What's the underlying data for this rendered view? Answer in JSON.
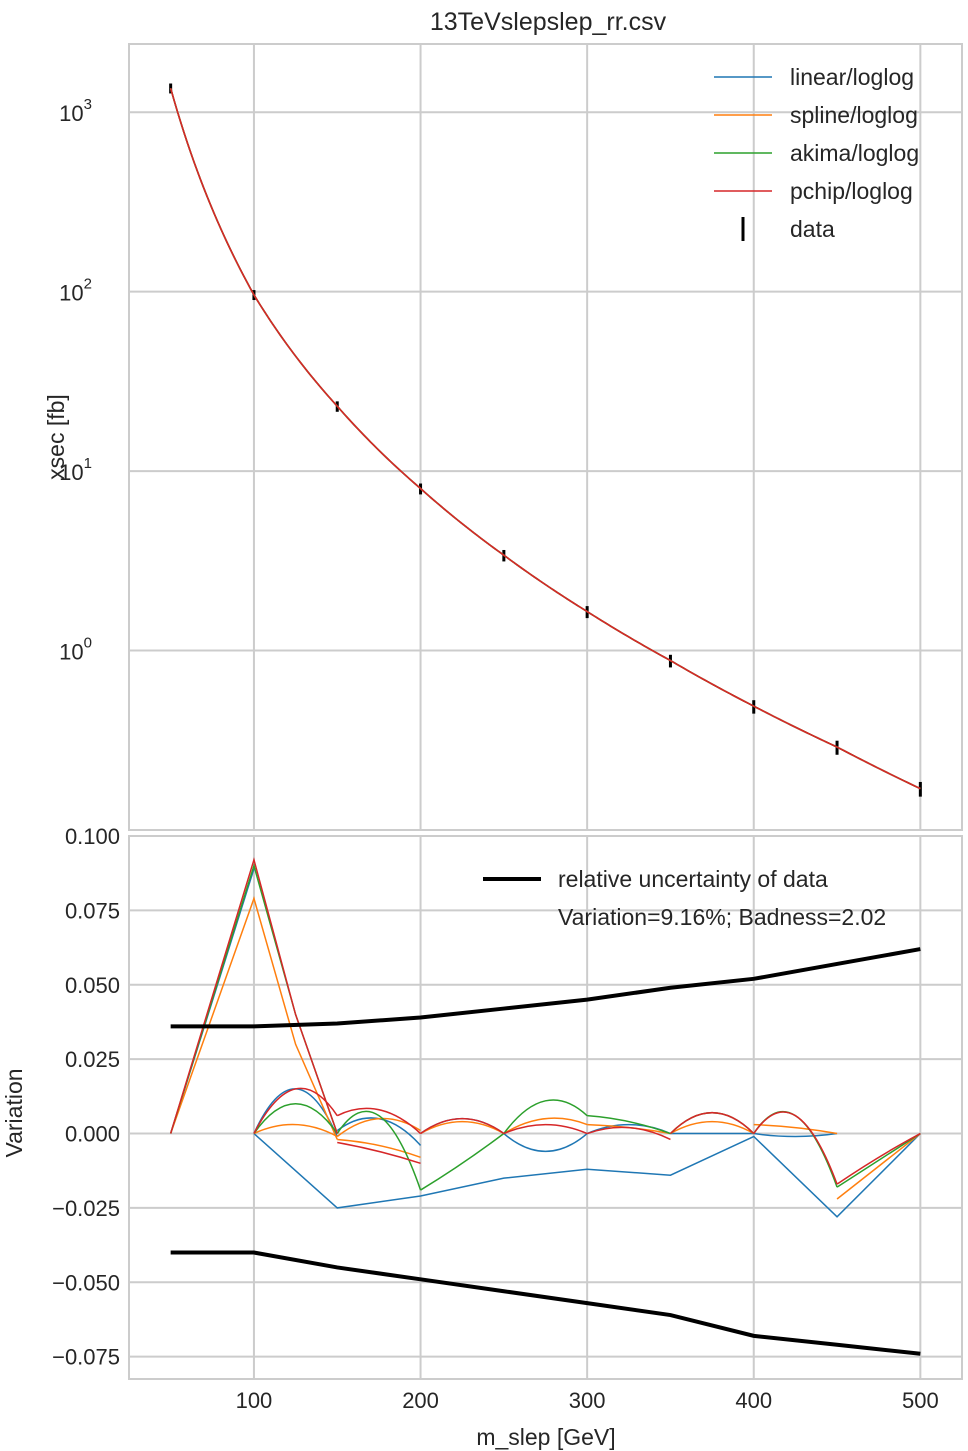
{
  "chart_data": [
    {
      "type": "line",
      "title": "13TeVslepslep_rr.csv",
      "xlabel": "",
      "ylabel": "xsec [fb]",
      "yscale": "log",
      "xlim": [
        25,
        525
      ],
      "ylim": [
        0.1,
        2400
      ],
      "x_ticks": [
        100,
        200,
        300,
        400,
        500
      ],
      "y_ticks": [
        {
          "value": 1000,
          "base": "10",
          "exp": "3"
        },
        {
          "value": 100,
          "base": "10",
          "exp": "2"
        },
        {
          "value": 10,
          "base": "10",
          "exp": "1"
        },
        {
          "value": 1,
          "base": "10",
          "exp": "0"
        }
      ],
      "grid": true,
      "legend_position": "top-right",
      "x": [
        50,
        100,
        150,
        200,
        250,
        300,
        350,
        400,
        450,
        500
      ],
      "series": [
        {
          "name": "linear/loglog",
          "color": "#1f77b4",
          "values": [
            1360,
            96,
            23,
            8,
            3.4,
            1.65,
            0.88,
            0.49,
            0.29,
            0.17
          ]
        },
        {
          "name": "spline/loglog",
          "color": "#ff7f0e",
          "values": [
            1360,
            96,
            23,
            8,
            3.4,
            1.65,
            0.88,
            0.49,
            0.29,
            0.17
          ]
        },
        {
          "name": "akima/loglog",
          "color": "#2ca02c",
          "values": [
            1360,
            96,
            23,
            8,
            3.4,
            1.65,
            0.88,
            0.49,
            0.29,
            0.17
          ]
        },
        {
          "name": "pchip/loglog",
          "color": "#d62728",
          "values": [
            1360,
            96,
            23,
            8,
            3.4,
            1.65,
            0.88,
            0.49,
            0.29,
            0.17
          ]
        }
      ],
      "data_points": {
        "name": "data",
        "color": "#000000",
        "x": [
          50,
          100,
          150,
          200,
          250,
          300,
          350,
          400,
          450,
          500
        ],
        "y": [
          1360,
          96,
          23,
          8,
          3.4,
          1.65,
          0.88,
          0.49,
          0.29,
          0.17
        ],
        "rel_err_up": [
          0.036,
          0.036,
          0.037,
          0.039,
          0.042,
          0.045,
          0.049,
          0.052,
          0.057,
          0.062
        ],
        "rel_err_down": [
          0.04,
          0.04,
          0.045,
          0.049,
          0.053,
          0.057,
          0.061,
          0.068,
          0.071,
          0.074
        ]
      }
    },
    {
      "type": "line",
      "xlabel": "m_slep [GeV]",
      "ylabel": "Variation",
      "xlim": [
        25,
        525
      ],
      "ylim": [
        -0.0825,
        0.1
      ],
      "x_ticks": [
        100,
        200,
        300,
        400,
        500
      ],
      "y_ticks": [
        "0.100",
        "0.075",
        "0.050",
        "0.025",
        "0.000",
        "−0.025",
        "−0.050",
        "−0.075"
      ],
      "grid": true,
      "legend_position": "top-right",
      "uncertainty": {
        "name": "relative uncertainty of data",
        "color": "#000000",
        "x": [
          50,
          100,
          150,
          200,
          250,
          300,
          350,
          400,
          450,
          500
        ],
        "upper": [
          0.036,
          0.036,
          0.037,
          0.039,
          0.042,
          0.045,
          0.049,
          0.052,
          0.057,
          0.062
        ],
        "lower": [
          -0.04,
          -0.04,
          -0.045,
          -0.049,
          -0.053,
          -0.057,
          -0.061,
          -0.068,
          -0.071,
          -0.074
        ]
      },
      "annotation": "Variation=9.16%; Badness=2.02",
      "series": [
        {
          "name": "linear/loglog",
          "color": "#1f77b4",
          "segments": [
            {
              "x": [
                50,
                100
              ],
              "y": [
                0,
                0.089
              ]
            },
            {
              "x": [
                100,
                150,
                200,
                250,
                300,
                350,
                400,
                450,
                500
              ],
              "y": [
                0,
                -0.025,
                -0.021,
                -0.015,
                -0.012,
                -0.014,
                -0.001,
                -0.028,
                0
              ]
            },
            {
              "x": [
                100,
                125,
                150
              ],
              "y": [
                0,
                0.015,
                -0.001
              ]
            },
            {
              "x": [
                150,
                175,
                200
              ],
              "y": [
                0.001,
                0.005,
                -0.004
              ]
            },
            {
              "x": [
                200,
                225,
                250
              ],
              "y": [
                0,
                0.005,
                0
              ]
            },
            {
              "x": [
                250,
                275,
                300
              ],
              "y": [
                0,
                -0.006,
                0
              ]
            },
            {
              "x": [
                300,
                325,
                350
              ],
              "y": [
                0,
                0.003,
                0
              ]
            },
            {
              "x": [
                350,
                375,
                400
              ],
              "y": [
                0,
                0,
                0
              ]
            },
            {
              "x": [
                400,
                425,
                450
              ],
              "y": [
                0,
                -0.001,
                0
              ]
            }
          ]
        },
        {
          "name": "spline/loglog",
          "color": "#ff7f0e",
          "segments": [
            {
              "x": [
                50,
                100,
                125,
                150
              ],
              "y": [
                0,
                0.079,
                0.03,
                -0.002
              ]
            },
            {
              "x": [
                100,
                125,
                150
              ],
              "y": [
                0,
                0.003,
                -0.001
              ]
            },
            {
              "x": [
                150,
                175,
                200
              ],
              "y": [
                -0.002,
                -0.004,
                -0.008
              ]
            },
            {
              "x": [
                150,
                175,
                200
              ],
              "y": [
                -0.001,
                0.005,
                0.001
              ]
            },
            {
              "x": [
                200,
                225,
                250
              ],
              "y": [
                0,
                0.004,
                0
              ]
            },
            {
              "x": [
                250,
                275,
                300
              ],
              "y": [
                0,
                0.005,
                0.003
              ]
            },
            {
              "x": [
                300,
                325,
                350
              ],
              "y": [
                0.003,
                0.002,
                0
              ]
            },
            {
              "x": [
                350,
                375,
                400
              ],
              "y": [
                0,
                0.004,
                0
              ]
            },
            {
              "x": [
                400,
                425,
                450
              ],
              "y": [
                0.003,
                0.002,
                0
              ]
            },
            {
              "x": [
                450,
                475,
                500
              ],
              "y": [
                -0.022,
                -0.011,
                0
              ]
            }
          ]
        },
        {
          "name": "akima/loglog",
          "color": "#2ca02c",
          "segments": [
            {
              "x": [
                50,
                100,
                125,
                150
              ],
              "y": [
                0,
                0.09,
                0.04,
                0
              ]
            },
            {
              "x": [
                100,
                125,
                150
              ],
              "y": [
                0,
                0.01,
                0
              ]
            },
            {
              "x": [
                150,
                175,
                200
              ],
              "y": [
                0,
                0.006,
                -0.019
              ]
            },
            {
              "x": [
                200,
                225,
                250
              ],
              "y": [
                -0.019,
                -0.01,
                0
              ]
            },
            {
              "x": [
                250,
                275,
                300
              ],
              "y": [
                0,
                0.011,
                0.006
              ]
            },
            {
              "x": [
                300,
                325,
                350
              ],
              "y": [
                0.006,
                0.004,
                0
              ]
            },
            {
              "x": [
                350,
                375,
                400
              ],
              "y": [
                0,
                0.007,
                0
              ]
            },
            {
              "x": [
                400,
                425,
                450
              ],
              "y": [
                0,
                0.006,
                -0.018
              ]
            },
            {
              "x": [
                450,
                475,
                500
              ],
              "y": [
                -0.018,
                -0.009,
                0
              ]
            }
          ]
        },
        {
          "name": "pchip/loglog",
          "color": "#d62728",
          "segments": [
            {
              "x": [
                50,
                100,
                125,
                150
              ],
              "y": [
                0,
                0.092,
                0.04,
                0
              ]
            },
            {
              "x": [
                100,
                125,
                150
              ],
              "y": [
                0,
                0.015,
                0.006
              ]
            },
            {
              "x": [
                150,
                175,
                200
              ],
              "y": [
                0.006,
                0.008,
                0
              ]
            },
            {
              "x": [
                150,
                175,
                200
              ],
              "y": [
                -0.003,
                -0.006,
                -0.01
              ]
            },
            {
              "x": [
                200,
                225,
                250
              ],
              "y": [
                0,
                0.005,
                0
              ]
            },
            {
              "x": [
                250,
                275,
                300
              ],
              "y": [
                0,
                0.003,
                0
              ]
            },
            {
              "x": [
                300,
                325,
                350
              ],
              "y": [
                0,
                0.002,
                -0.002
              ]
            },
            {
              "x": [
                350,
                375,
                400
              ],
              "y": [
                0,
                0.007,
                0
              ]
            },
            {
              "x": [
                400,
                425,
                450
              ],
              "y": [
                0,
                0.006,
                -0.017
              ]
            },
            {
              "x": [
                450,
                475,
                500
              ],
              "y": [
                -0.017,
                -0.008,
                0
              ]
            }
          ]
        }
      ]
    }
  ]
}
